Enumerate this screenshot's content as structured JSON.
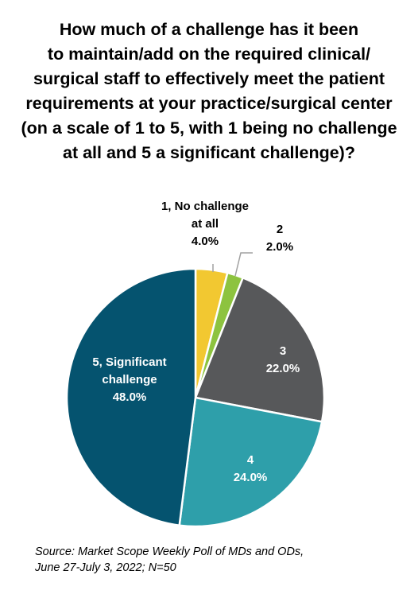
{
  "title_lines": [
    "How much of a challenge has it been",
    "to maintain/add on the required clinical/",
    "surgical staff to effectively meet the patient",
    "requirements at your practice/surgical center",
    "(on a scale of 1 to 5, with 1 being no challenge",
    "at all and 5 a significant challenge)?"
  ],
  "source_lines": [
    "Source: Market Scope Weekly Poll of MDs and ODs,",
    "June 27-July 3, 2022; N=50"
  ],
  "chart_data": {
    "type": "pie",
    "start": "12 o'clock",
    "direction": "clockwise",
    "slices": [
      {
        "label_lines": [
          "1, No challenge",
          "at all"
        ],
        "value_label": "4.0%",
        "value": 4.0,
        "color": "#F2C831",
        "label_color": "#000000",
        "label_position": "outside"
      },
      {
        "label_lines": [
          "2"
        ],
        "value_label": "2.0%",
        "value": 2.0,
        "color": "#8DC33F",
        "label_color": "#000000",
        "label_position": "outside"
      },
      {
        "label_lines": [
          "3"
        ],
        "value_label": "22.0%",
        "value": 22.0,
        "color": "#57585A",
        "label_color": "#ffffff",
        "label_position": "inside"
      },
      {
        "label_lines": [
          "4"
        ],
        "value_label": "24.0%",
        "value": 24.0,
        "color": "#2E9FAA",
        "label_color": "#ffffff",
        "label_position": "inside"
      },
      {
        "label_lines": [
          "5, Significant",
          "challenge"
        ],
        "value_label": "48.0%",
        "value": 48.0,
        "color": "#05536F",
        "label_color": "#ffffff",
        "label_position": "inside"
      }
    ]
  }
}
